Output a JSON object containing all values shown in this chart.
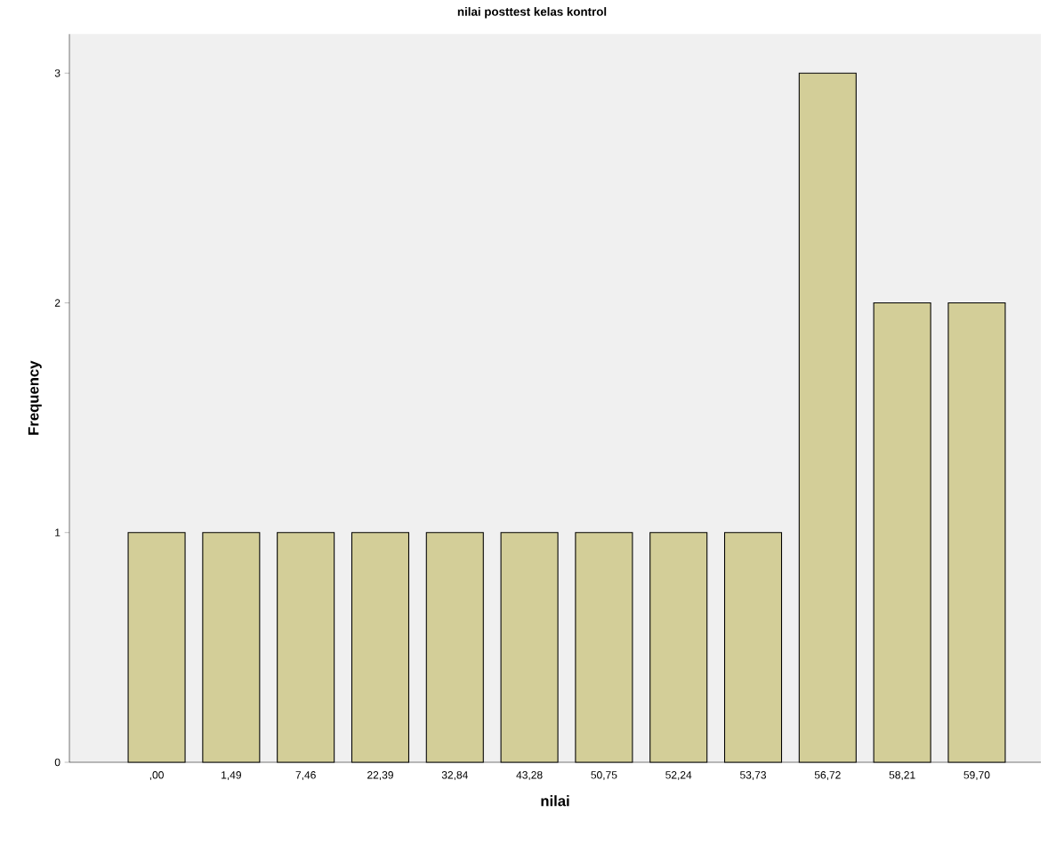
{
  "chart_data": {
    "type": "bar",
    "title": "nilai posttest kelas kontrol",
    "xlabel": "nilai",
    "ylabel": "Frequency",
    "categories": [
      ",00",
      "1,49",
      "7,46",
      "22,39",
      "32,84",
      "43,28",
      "50,75",
      "52,24",
      "53,73",
      "56,72",
      "58,21",
      "59,70"
    ],
    "values": [
      1,
      1,
      1,
      1,
      1,
      1,
      1,
      1,
      1,
      3,
      2,
      2
    ],
    "color": "#d3ce98",
    "ylim": [
      0,
      3.17
    ],
    "yticks": [
      0,
      1,
      2,
      3
    ],
    "grid": false
  }
}
